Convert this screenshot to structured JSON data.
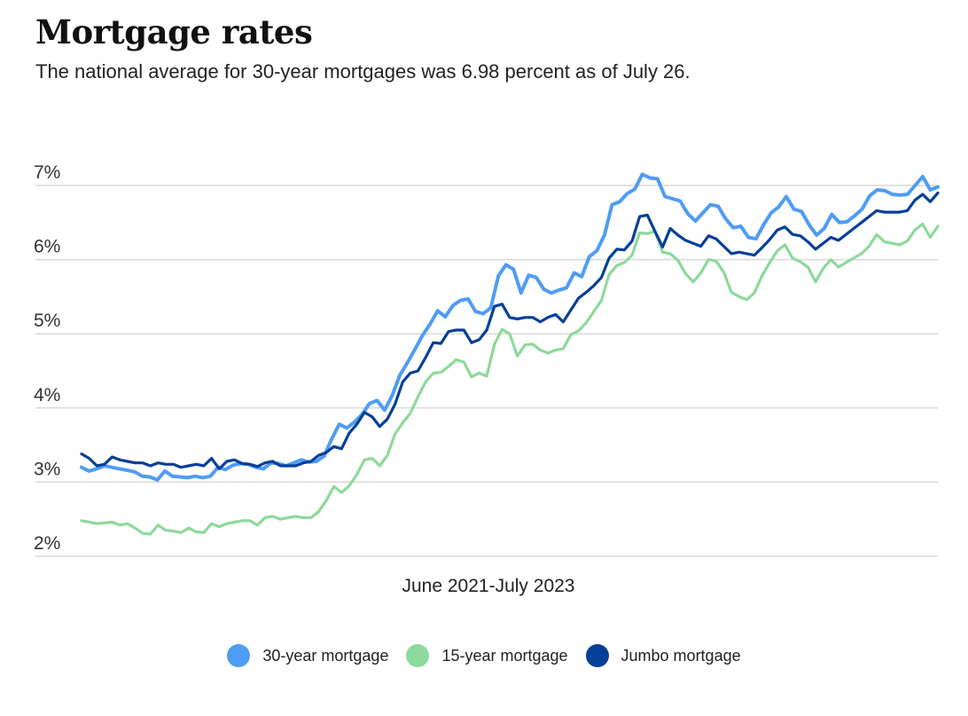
{
  "title": "Mortgage rates",
  "subtitle": "The national average for 30-year mortgages was 6.98 percent as of July 26.",
  "chart_data": {
    "type": "line",
    "xlabel": "June 2021-July 2023",
    "ylabel": "",
    "ylim": [
      2,
      7.2
    ],
    "yticks": [
      {
        "value": 2,
        "label": "2%"
      },
      {
        "value": 3,
        "label": "3%"
      },
      {
        "value": 4,
        "label": "4%"
      },
      {
        "value": 5,
        "label": "5%"
      },
      {
        "value": 6,
        "label": "6%"
      },
      {
        "value": 7,
        "label": "7%"
      }
    ],
    "grid": true,
    "legend": "bottom",
    "series": [
      {
        "name": "30-year mortgage",
        "color": "#4f9cf5",
        "values": [
          3.2,
          3.15,
          3.18,
          3.22,
          3.2,
          3.18,
          3.16,
          3.14,
          3.08,
          3.07,
          3.03,
          3.15,
          3.08,
          3.07,
          3.06,
          3.08,
          3.06,
          3.08,
          3.2,
          3.17,
          3.23,
          3.25,
          3.24,
          3.2,
          3.18,
          3.26,
          3.25,
          3.22,
          3.26,
          3.3,
          3.27,
          3.28,
          3.35,
          3.58,
          3.78,
          3.73,
          3.81,
          3.91,
          4.06,
          4.1,
          3.97,
          4.17,
          4.44,
          4.61,
          4.79,
          4.98,
          5.13,
          5.31,
          5.23,
          5.38,
          5.45,
          5.47,
          5.3,
          5.27,
          5.35,
          5.78,
          5.93,
          5.87,
          5.55,
          5.79,
          5.76,
          5.6,
          5.55,
          5.59,
          5.62,
          5.82,
          5.77,
          6.04,
          6.12,
          6.33,
          6.74,
          6.78,
          6.89,
          6.95,
          7.15,
          7.1,
          7.09,
          6.85,
          6.82,
          6.79,
          6.62,
          6.52,
          6.63,
          6.74,
          6.72,
          6.55,
          6.43,
          6.45,
          6.3,
          6.28,
          6.47,
          6.63,
          6.71,
          6.85,
          6.68,
          6.65,
          6.47,
          6.33,
          6.42,
          6.61,
          6.5,
          6.51,
          6.59,
          6.68,
          6.86,
          6.94,
          6.93,
          6.88,
          6.87,
          6.88,
          7.0,
          7.12,
          6.94,
          6.98
        ]
      },
      {
        "name": "15-year mortgage",
        "color": "#8dd99b",
        "values": [
          2.48,
          2.46,
          2.44,
          2.45,
          2.46,
          2.42,
          2.44,
          2.38,
          2.31,
          2.3,
          2.42,
          2.35,
          2.34,
          2.32,
          2.38,
          2.33,
          2.32,
          2.44,
          2.4,
          2.44,
          2.46,
          2.48,
          2.48,
          2.42,
          2.52,
          2.54,
          2.5,
          2.52,
          2.54,
          2.52,
          2.52,
          2.6,
          2.75,
          2.94,
          2.86,
          2.95,
          3.1,
          3.3,
          3.32,
          3.22,
          3.36,
          3.65,
          3.8,
          3.93,
          4.15,
          4.35,
          4.47,
          4.48,
          4.56,
          4.65,
          4.62,
          4.42,
          4.47,
          4.43,
          4.86,
          5.06,
          5.0,
          4.7,
          4.85,
          4.86,
          4.78,
          4.74,
          4.78,
          4.8,
          4.99,
          5.04,
          5.15,
          5.3,
          5.45,
          5.8,
          5.92,
          5.96,
          6.06,
          6.36,
          6.35,
          6.38,
          6.1,
          6.08,
          5.99,
          5.81,
          5.7,
          5.82,
          6.0,
          5.98,
          5.83,
          5.56,
          5.5,
          5.46,
          5.55,
          5.78,
          5.96,
          6.12,
          6.2,
          6.02,
          5.97,
          5.9,
          5.7,
          5.88,
          6.0,
          5.9,
          5.96,
          6.02,
          6.08,
          6.18,
          6.34,
          6.24,
          6.22,
          6.2,
          6.25,
          6.4,
          6.48,
          6.3,
          6.45
        ]
      },
      {
        "name": "Jumbo mortgage",
        "color": "#053f98",
        "values": [
          3.38,
          3.32,
          3.22,
          3.24,
          3.34,
          3.3,
          3.28,
          3.26,
          3.26,
          3.22,
          3.26,
          3.24,
          3.24,
          3.2,
          3.22,
          3.24,
          3.22,
          3.32,
          3.18,
          3.28,
          3.3,
          3.25,
          3.24,
          3.21,
          3.26,
          3.28,
          3.22,
          3.22,
          3.22,
          3.26,
          3.28,
          3.36,
          3.4,
          3.48,
          3.45,
          3.66,
          3.78,
          3.94,
          3.88,
          3.75,
          3.85,
          4.05,
          4.35,
          4.47,
          4.5,
          4.68,
          4.88,
          4.87,
          5.03,
          5.05,
          5.05,
          4.88,
          4.92,
          5.05,
          5.37,
          5.4,
          5.22,
          5.2,
          5.22,
          5.22,
          5.16,
          5.22,
          5.26,
          5.16,
          5.32,
          5.48,
          5.56,
          5.65,
          5.76,
          6.02,
          6.14,
          6.13,
          6.25,
          6.58,
          6.6,
          6.38,
          6.17,
          6.42,
          6.33,
          6.26,
          6.22,
          6.18,
          6.32,
          6.28,
          6.18,
          6.08,
          6.1,
          6.08,
          6.06,
          6.16,
          6.27,
          6.4,
          6.44,
          6.34,
          6.32,
          6.24,
          6.14,
          6.22,
          6.3,
          6.26,
          6.34,
          6.42,
          6.5,
          6.58,
          6.66,
          6.64,
          6.64,
          6.64,
          6.66,
          6.8,
          6.88,
          6.78,
          6.9
        ]
      }
    ]
  }
}
